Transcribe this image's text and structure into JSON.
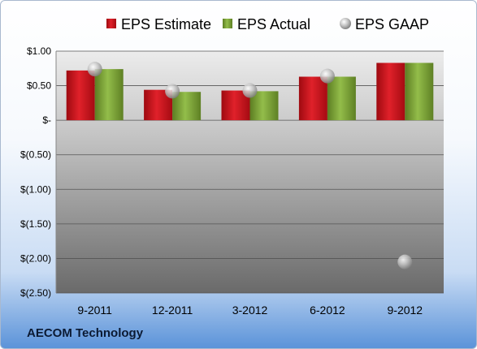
{
  "company_label": "AECOM Technology",
  "chart_data": {
    "type": "bar",
    "categories": [
      "9-2011",
      "12-2011",
      "3-2012",
      "6-2012",
      "9-2012"
    ],
    "series": [
      {
        "name": "EPS Estimate",
        "kind": "bar",
        "color": "#c8101a",
        "values": [
          0.72,
          0.44,
          0.43,
          0.63,
          0.83
        ]
      },
      {
        "name": "EPS Actual",
        "kind": "bar",
        "color": "#79a233",
        "values": [
          0.74,
          0.41,
          0.42,
          0.63,
          0.83
        ]
      },
      {
        "name": "EPS GAAP",
        "kind": "marker",
        "color": "#b8b8b8",
        "values": [
          0.74,
          0.42,
          0.43,
          0.64,
          -2.05
        ]
      }
    ],
    "y_ticks": [
      {
        "value": 1.0,
        "label": "$1.00"
      },
      {
        "value": 0.5,
        "label": "$0.50"
      },
      {
        "value": 0.0,
        "label": "$-"
      },
      {
        "value": -0.5,
        "label": "$(0.50)"
      },
      {
        "value": -1.0,
        "label": "$(1.00)"
      },
      {
        "value": -1.5,
        "label": "$(1.50)"
      },
      {
        "value": -2.0,
        "label": "$(2.00)"
      },
      {
        "value": -2.5,
        "label": "$(2.50)"
      }
    ],
    "ylim": [
      -2.5,
      1.0
    ],
    "grid": true,
    "legend_position": "top"
  }
}
